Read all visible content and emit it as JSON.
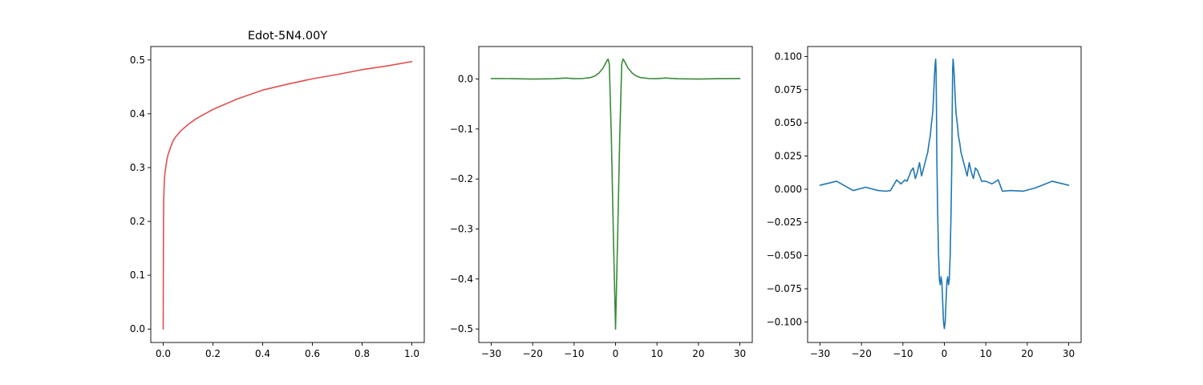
{
  "chart_data": [
    {
      "type": "line",
      "title": "Edot-5N4.00Y",
      "xlim": [
        -0.05,
        1.05
      ],
      "ylim": [
        -0.025,
        0.525
      ],
      "xticks": [
        0.0,
        0.2,
        0.4,
        0.6,
        0.8,
        1.0
      ],
      "xtick_labels": [
        "0.0",
        "0.2",
        "0.4",
        "0.6",
        "0.8",
        "1.0"
      ],
      "yticks": [
        0.0,
        0.1,
        0.2,
        0.3,
        0.4,
        0.5
      ],
      "ytick_labels": [
        "0.0",
        "0.1",
        "0.2",
        "0.3",
        "0.4",
        "0.5"
      ],
      "grid": false,
      "series": [
        {
          "color": "#e05050",
          "x": [
            0,
            0.001,
            0.002,
            0.004,
            0.006,
            0.01,
            0.015,
            0.02,
            0.03,
            0.04,
            0.05,
            0.07,
            0.1,
            0.13,
            0.16,
            0.2,
            0.25,
            0.3,
            0.35,
            0.4,
            0.5,
            0.6,
            0.7,
            0.8,
            0.9,
            1.0
          ],
          "y": [
            0.0,
            0.18,
            0.24,
            0.27,
            0.285,
            0.3,
            0.315,
            0.325,
            0.338,
            0.35,
            0.357,
            0.368,
            0.38,
            0.39,
            0.398,
            0.408,
            0.418,
            0.428,
            0.436,
            0.444,
            0.455,
            0.465,
            0.473,
            0.482,
            0.489,
            0.497
          ]
        }
      ]
    },
    {
      "type": "line",
      "title": "",
      "xlim": [
        -33,
        33
      ],
      "ylim": [
        -0.527,
        0.065
      ],
      "xticks": [
        -30,
        -20,
        -10,
        0,
        10,
        20,
        30
      ],
      "xtick_labels": [
        "−30",
        "−20",
        "−10",
        "0",
        "10",
        "20",
        "30"
      ],
      "yticks": [
        0.0,
        -0.1,
        -0.2,
        -0.3,
        -0.4,
        -0.5
      ],
      "ytick_labels": [
        "0.0",
        "−0.1",
        "−0.2",
        "−0.3",
        "−0.4",
        "−0.5"
      ],
      "grid": false,
      "series": [
        {
          "color": "#3a8a3a",
          "x": [
            -30,
            -25,
            -20,
            -15,
            -12,
            -10,
            -8,
            -6,
            -5,
            -4,
            -3,
            -2.5,
            -2,
            -1.8,
            -1.5,
            -1,
            -0.5,
            0,
            0.5,
            1,
            1.5,
            1.8,
            2,
            2.5,
            3,
            4,
            5,
            6,
            8,
            10,
            12,
            15,
            20,
            25,
            30
          ],
          "y": [
            0.001,
            0.0008,
            0.0,
            0.0005,
            0.002,
            0.0008,
            0.001,
            0.003,
            0.006,
            0.012,
            0.022,
            0.03,
            0.038,
            0.04,
            0.03,
            -0.12,
            -0.32,
            -0.5,
            -0.32,
            -0.12,
            0.03,
            0.04,
            0.038,
            0.03,
            0.022,
            0.012,
            0.006,
            0.003,
            0.001,
            0.0008,
            0.002,
            0.0005,
            0.0,
            0.0008,
            0.001
          ]
        }
      ]
    },
    {
      "type": "line",
      "title": "",
      "xlim": [
        -33,
        33
      ],
      "ylim": [
        -0.1155,
        0.1075
      ],
      "xticks": [
        -30,
        -20,
        -10,
        0,
        10,
        20,
        30
      ],
      "xtick_labels": [
        "−30",
        "−20",
        "−10",
        "0",
        "10",
        "20",
        "30"
      ],
      "yticks": [
        0.1,
        0.075,
        0.05,
        0.025,
        0.0,
        -0.025,
        -0.05,
        -0.075,
        -0.1
      ],
      "ytick_labels": [
        "0.100",
        "0.075",
        "0.050",
        "0.025",
        "0.000",
        "−0.025",
        "−0.050",
        "−0.075",
        "−0.100"
      ],
      "grid": false,
      "series": [
        {
          "color": "#1f77b4",
          "x": [
            -30,
            -26,
            -22,
            -19,
            -16,
            -14,
            -13,
            -11.5,
            -10.5,
            -9.5,
            -9,
            -8.5,
            -8,
            -7.5,
            -7,
            -6.5,
            -6,
            -5.5,
            -5,
            -4.5,
            -4,
            -3.7,
            -3.4,
            -3.1,
            -2.8,
            -2.6,
            -2.4,
            -2.2,
            -2.1,
            -2.0,
            -1.9,
            -1.8,
            -1.6,
            -1.4,
            -1.2,
            -1.0,
            -0.8,
            -0.6,
            -0.4,
            -0.2,
            0.0,
            0.2,
            0.4,
            0.6,
            0.8,
            1.0,
            1.2,
            1.4,
            1.6,
            1.8,
            1.9,
            2.0,
            2.1,
            2.2,
            2.4,
            2.6,
            2.8,
            3.1,
            3.4,
            3.7,
            4.0,
            4.5,
            5.0,
            5.5,
            6.0,
            6.5,
            7.0,
            7.5,
            8.0,
            8.5,
            9.0,
            10.0,
            11.5,
            13,
            14,
            16,
            19,
            22,
            26,
            30
          ],
          "y": [
            0.003,
            0.006,
            -0.001,
            0.0015,
            -0.001,
            -0.0015,
            -0.001,
            0.007,
            0.004,
            0.007,
            0.006,
            0.01,
            0.014,
            0.016,
            0.008,
            0.013,
            0.02,
            0.01,
            0.016,
            0.022,
            0.028,
            0.035,
            0.04,
            0.05,
            0.058,
            0.07,
            0.085,
            0.095,
            0.098,
            0.09,
            0.06,
            0.02,
            -0.02,
            -0.05,
            -0.068,
            -0.072,
            -0.066,
            -0.07,
            -0.085,
            -0.1,
            -0.105,
            -0.1,
            -0.085,
            -0.07,
            -0.066,
            -0.072,
            -0.068,
            -0.05,
            -0.02,
            0.02,
            0.06,
            0.09,
            0.098,
            0.095,
            0.085,
            0.07,
            0.058,
            0.05,
            0.04,
            0.035,
            0.028,
            0.022,
            0.016,
            0.01,
            0.02,
            0.013,
            0.008,
            0.016,
            0.014,
            0.01,
            0.006,
            0.006,
            0.004,
            0.007,
            -0.0015,
            -0.001,
            -0.0015,
            0.001,
            0.006,
            0.003
          ]
        }
      ]
    }
  ]
}
